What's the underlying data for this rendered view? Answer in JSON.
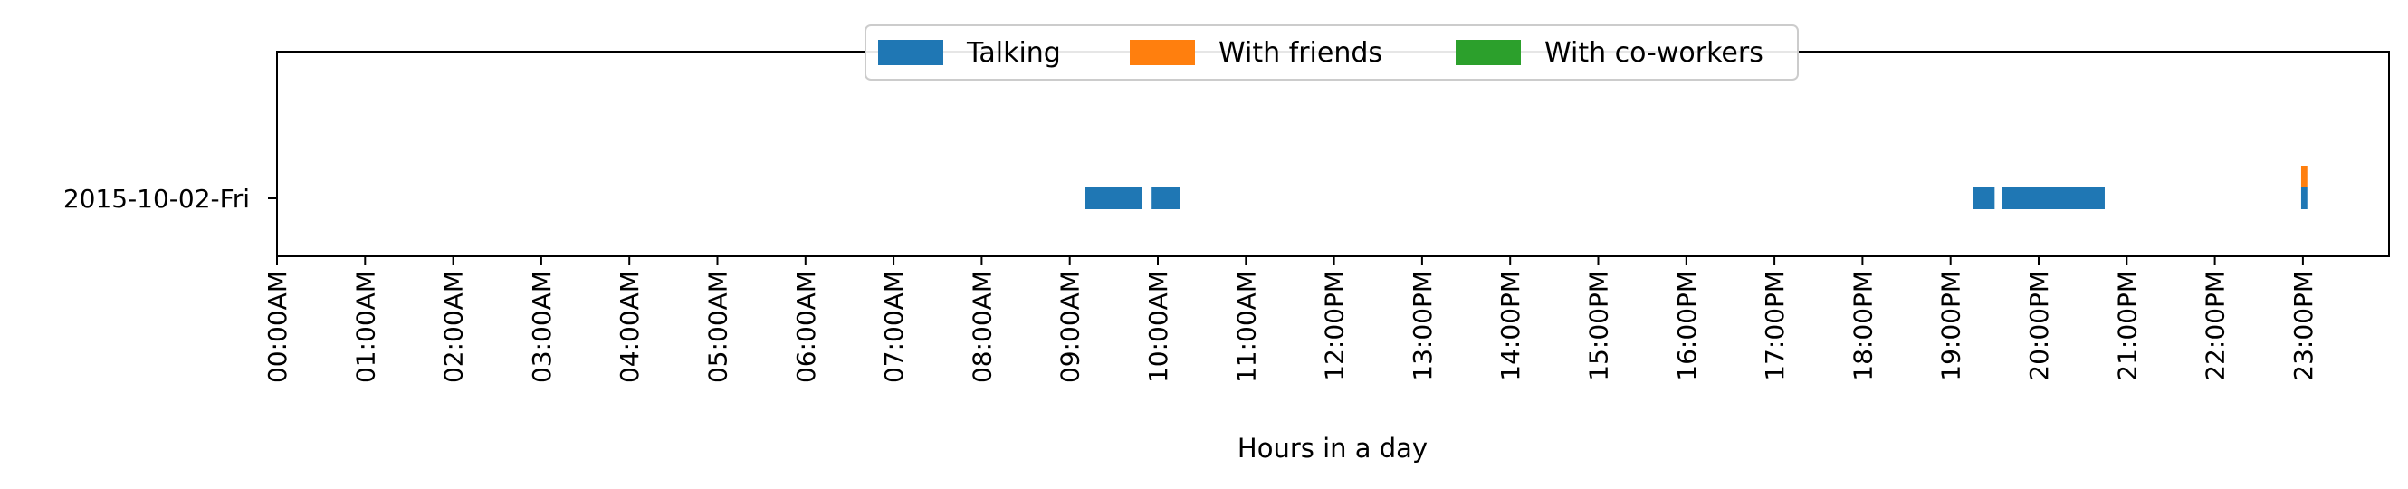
{
  "chart_data": {
    "type": "bar",
    "orientation": "horizontal-timeline",
    "title": "",
    "xlabel": "Hours in a day",
    "ylabel": "",
    "xlim": [
      0,
      24
    ],
    "grid": false,
    "legend_placement": "top-center",
    "categories": [
      "2015-10-02-Fri"
    ],
    "x_tick_labels": [
      "00:00AM",
      "01:00AM",
      "02:00AM",
      "03:00AM",
      "04:00AM",
      "05:00AM",
      "06:00AM",
      "07:00AM",
      "08:00AM",
      "09:00AM",
      "10:00AM",
      "11:00AM",
      "12:00PM",
      "13:00PM",
      "14:00PM",
      "15:00PM",
      "16:00PM",
      "17:00PM",
      "18:00PM",
      "19:00PM",
      "20:00PM",
      "21:00PM",
      "22:00PM",
      "23:00PM"
    ],
    "series": [
      {
        "name": "Talking",
        "color": "#1f77b4",
        "intervals": [
          {
            "start": 9.17,
            "end": 9.82
          },
          {
            "start": 9.93,
            "end": 10.25
          },
          {
            "start": 19.25,
            "end": 19.5
          },
          {
            "start": 19.58,
            "end": 20.75
          },
          {
            "start": 22.98,
            "end": 23.05
          }
        ]
      },
      {
        "name": "With friends",
        "color": "#ff7f0e",
        "intervals": [
          {
            "start": 22.98,
            "end": 23.05
          }
        ]
      },
      {
        "name": "With co-workers",
        "color": "#2ca02c",
        "intervals": []
      }
    ]
  }
}
